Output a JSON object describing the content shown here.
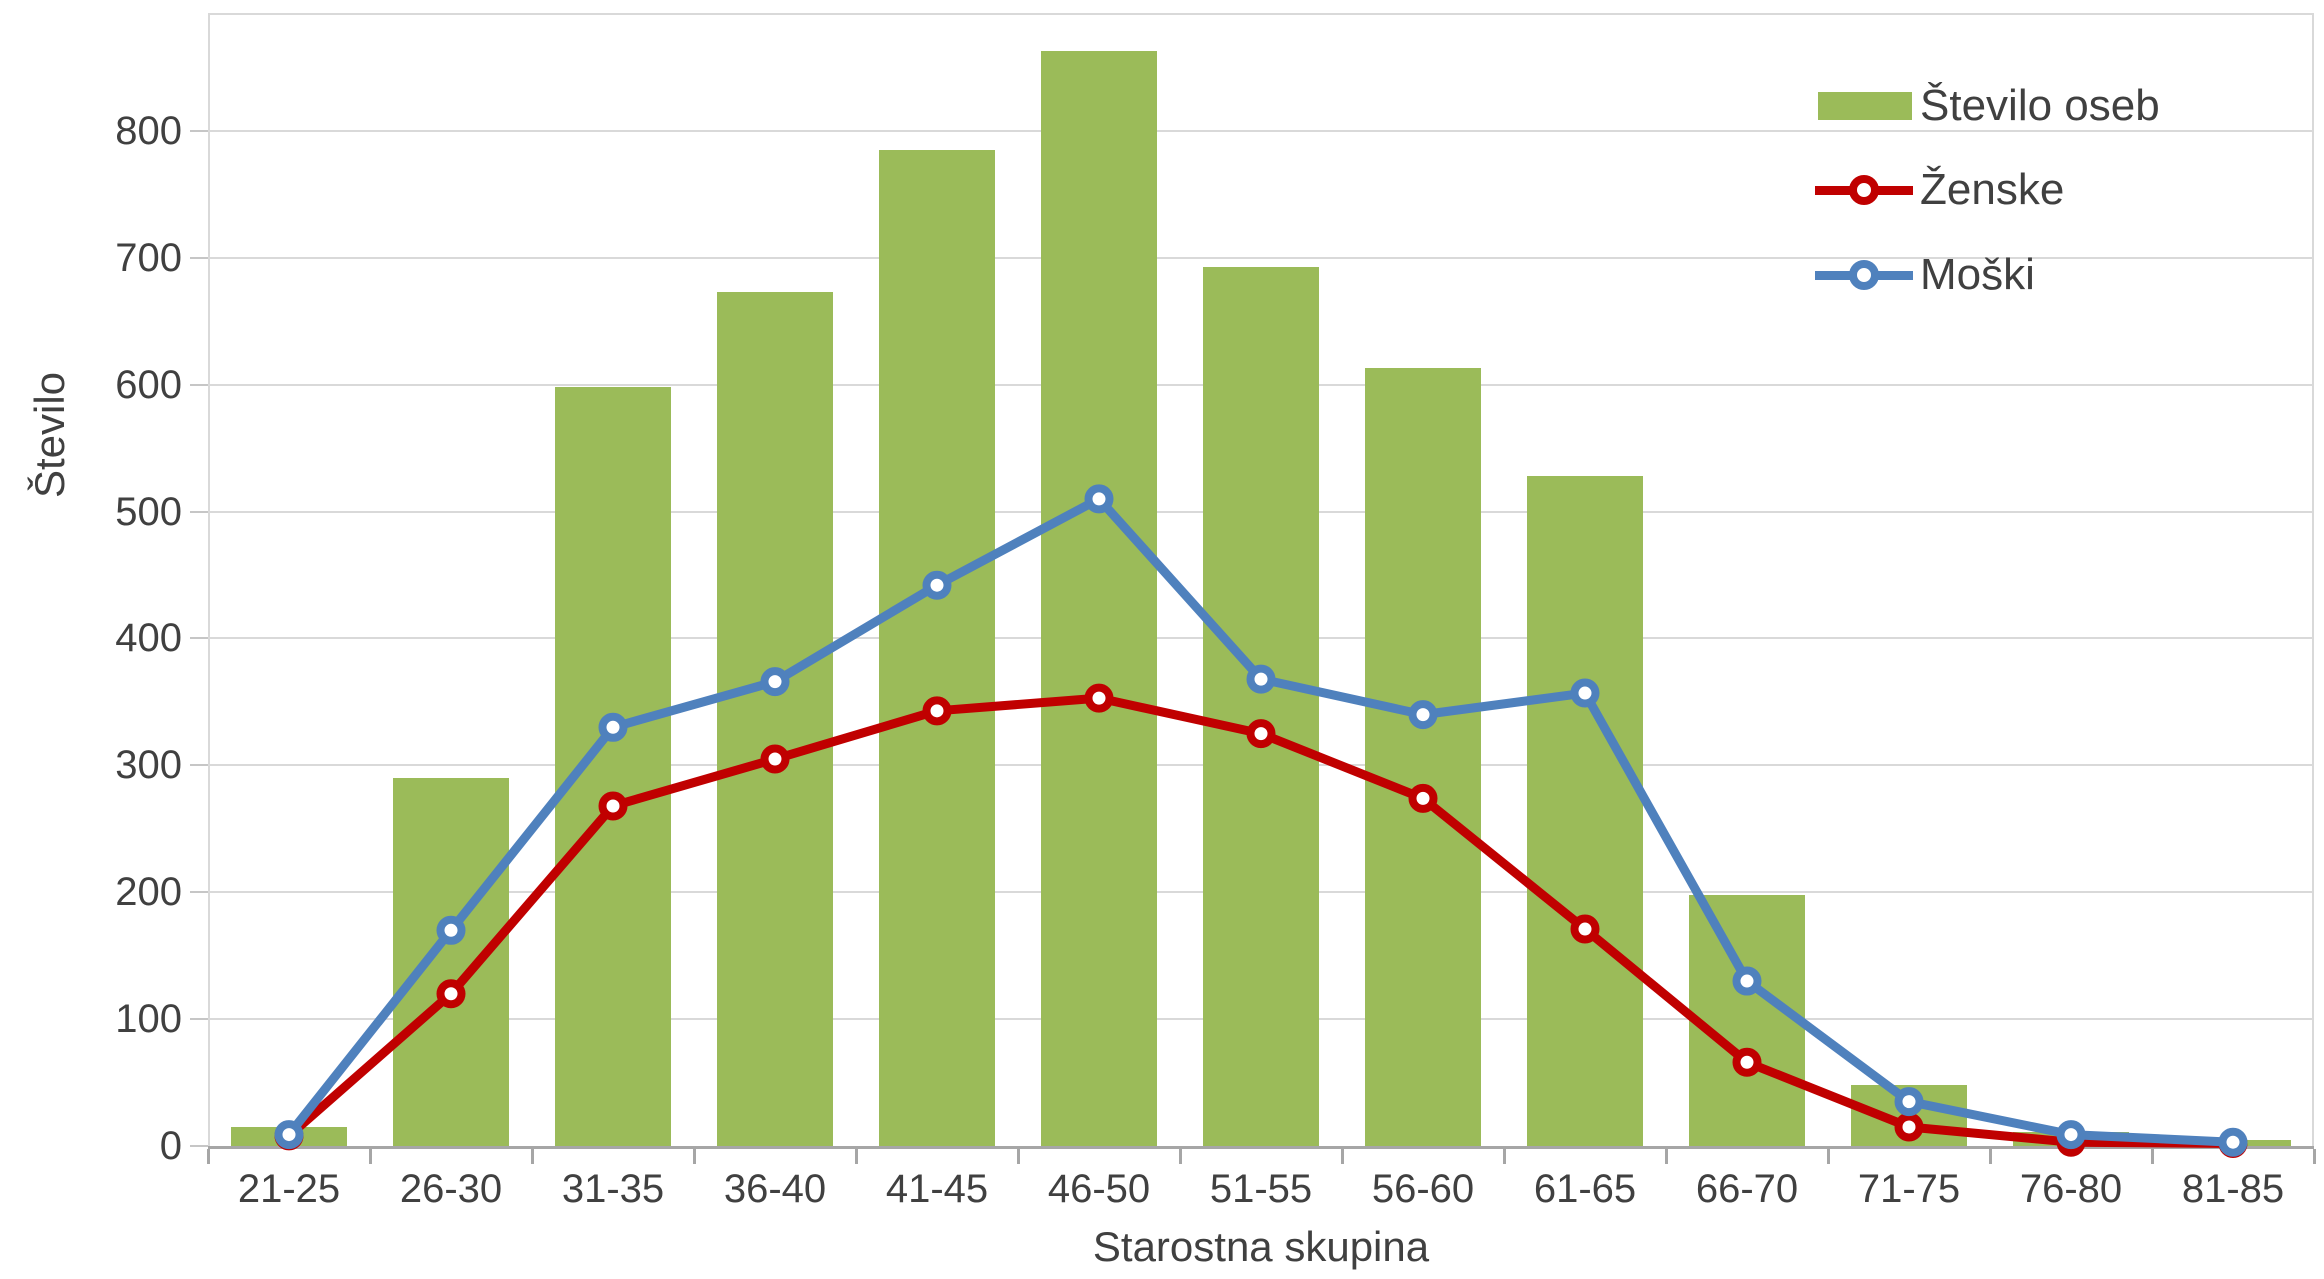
{
  "chart_data": {
    "type": "combo",
    "title": "",
    "categories": [
      "21-25",
      "26-30",
      "31-35",
      "36-40",
      "41-45",
      "46-50",
      "51-55",
      "56-60",
      "61-65",
      "66-70",
      "71-75",
      "76-80",
      "81-85"
    ],
    "series": [
      {
        "name": "Število oseb",
        "type": "bar",
        "color": "#9BBB59",
        "values": [
          15,
          290,
          598,
          673,
          785,
          863,
          693,
          613,
          528,
          198,
          48,
          11,
          5
        ]
      },
      {
        "name": "Ženske",
        "type": "line",
        "color": "#C00000",
        "values": [
          8,
          120,
          268,
          305,
          343,
          353,
          325,
          274,
          171,
          66,
          15,
          3,
          2
        ]
      },
      {
        "name": "Moški",
        "type": "line",
        "color": "#4F81BD",
        "values": [
          9,
          170,
          330,
          366,
          442,
          510,
          368,
          340,
          357,
          130,
          35,
          9,
          3
        ]
      }
    ],
    "xlabel": "Starostna skupina",
    "ylabel": "Število",
    "yticks": [
      0,
      100,
      200,
      300,
      400,
      500,
      600,
      700,
      800
    ],
    "ylim": [
      0,
      893
    ],
    "grid": true,
    "legend_position": "top-right"
  },
  "colors": {
    "background": "#FFFFFF",
    "gridline": "#D9D9D9",
    "axis_line": "#A6A6A6",
    "text": "#404040",
    "bar_fill": "#9BBB59",
    "zenske_line": "#C00000",
    "moski_line": "#4F81BD"
  }
}
